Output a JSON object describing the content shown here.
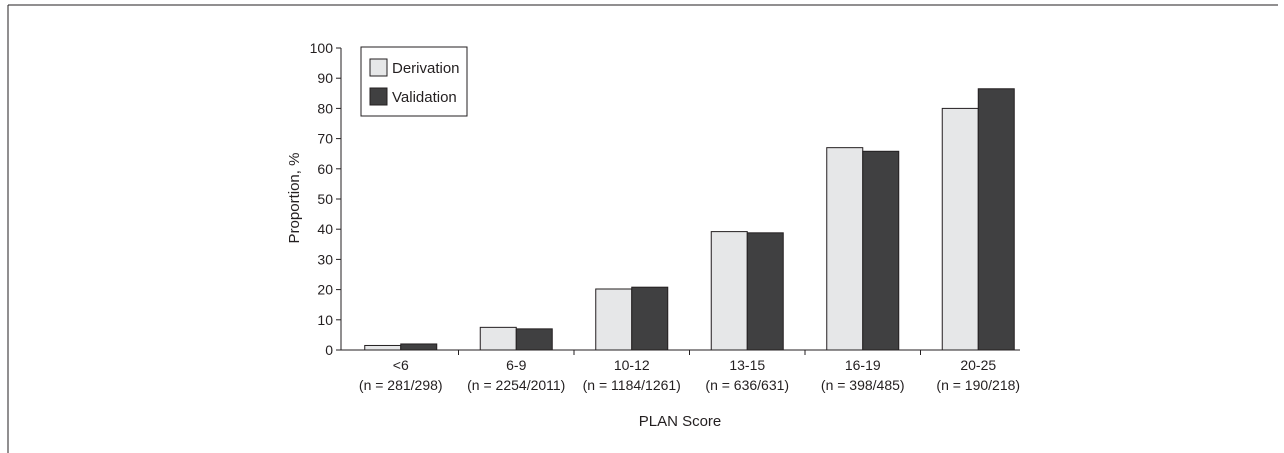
{
  "chart_data": {
    "type": "bar",
    "title": "",
    "xlabel": "PLAN Score",
    "ylabel": "Proportion, %",
    "ylim": [
      0,
      100
    ],
    "yticks": [
      0,
      10,
      20,
      30,
      40,
      50,
      60,
      70,
      80,
      90,
      100
    ],
    "grid": false,
    "legend_position": "top-left",
    "categories": [
      "<6",
      "6-9",
      "10-12",
      "13-15",
      "16-19",
      "20-25"
    ],
    "category_counts": [
      "(n = 281/298)",
      "(n = 2254/2011)",
      "(n = 1184/1261)",
      "(n = 636/631)",
      "(n = 398/485)",
      "(n = 190/218)"
    ],
    "series": [
      {
        "name": "Derivation",
        "color": "#e6e7e8",
        "values": [
          1.5,
          7.5,
          20.2,
          39.2,
          67.0,
          80.0
        ]
      },
      {
        "name": "Validation",
        "color": "#404041",
        "values": [
          2.0,
          7.0,
          20.8,
          38.8,
          65.8,
          86.5
        ]
      }
    ]
  }
}
